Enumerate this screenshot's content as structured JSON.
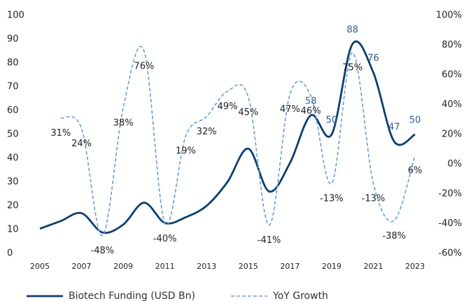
{
  "chart_data": {
    "type": "line",
    "x": [
      2005,
      2006,
      2007,
      2008,
      2009,
      2010,
      2011,
      2012,
      2013,
      2014,
      2015,
      2016,
      2017,
      2018,
      2019,
      2020,
      2021,
      2022,
      2023
    ],
    "xlim": [
      2005,
      2023
    ],
    "xticks": [
      2005,
      2007,
      2009,
      2011,
      2013,
      2015,
      2017,
      2019,
      2021,
      2023
    ],
    "ylim": [
      0,
      100
    ],
    "yticks": [
      0,
      10,
      20,
      30,
      40,
      50,
      60,
      70,
      80,
      90,
      100
    ],
    "y2lim": [
      -60,
      100
    ],
    "y2ticks": [
      {
        "value": -60,
        "label": "-60%"
      },
      {
        "value": -40,
        "label": "-40%"
      },
      {
        "value": -20,
        "label": "-20%"
      },
      {
        "value": 0,
        "label": "0%"
      },
      {
        "value": 20,
        "label": "20%"
      },
      {
        "value": 40,
        "label": "40%"
      },
      {
        "value": 60,
        "label": "60%"
      },
      {
        "value": 80,
        "label": "80%"
      },
      {
        "value": 100,
        "label": "100%"
      }
    ],
    "series": [
      {
        "name": "Biotech Funding (USD Bn)",
        "color": "#0d3f6e",
        "style": "solid",
        "values": [
          10.4,
          13.6,
          16.9,
          8.8,
          12.1,
          21.3,
          12.8,
          15.2,
          20,
          30,
          44,
          26,
          38,
          58,
          50,
          88,
          76,
          47,
          50
        ],
        "value_labels": [
          null,
          null,
          null,
          null,
          null,
          null,
          null,
          null,
          null,
          null,
          null,
          null,
          null,
          "58",
          "50",
          "88",
          "76",
          "47",
          "50"
        ],
        "label_color": "#2a5d8a"
      },
      {
        "name": "YoY Growth",
        "color": "#6a9fd8",
        "style": "dashed",
        "axis": "y2",
        "values": [
          null,
          31,
          24,
          -48,
          38,
          76,
          -40,
          19,
          32,
          49,
          45,
          -41,
          47,
          46,
          -13,
          75,
          -13,
          -38,
          6
        ],
        "value_labels": [
          null,
          "31%",
          "24%",
          "-48%",
          "38%",
          "76%",
          "-40%",
          "19%",
          "32%",
          "49%",
          "45%",
          "-41%",
          "47%",
          "46%",
          "-13%",
          "75%",
          "-13%",
          "-38%",
          "6%"
        ],
        "label_color": "#222"
      }
    ]
  }
}
